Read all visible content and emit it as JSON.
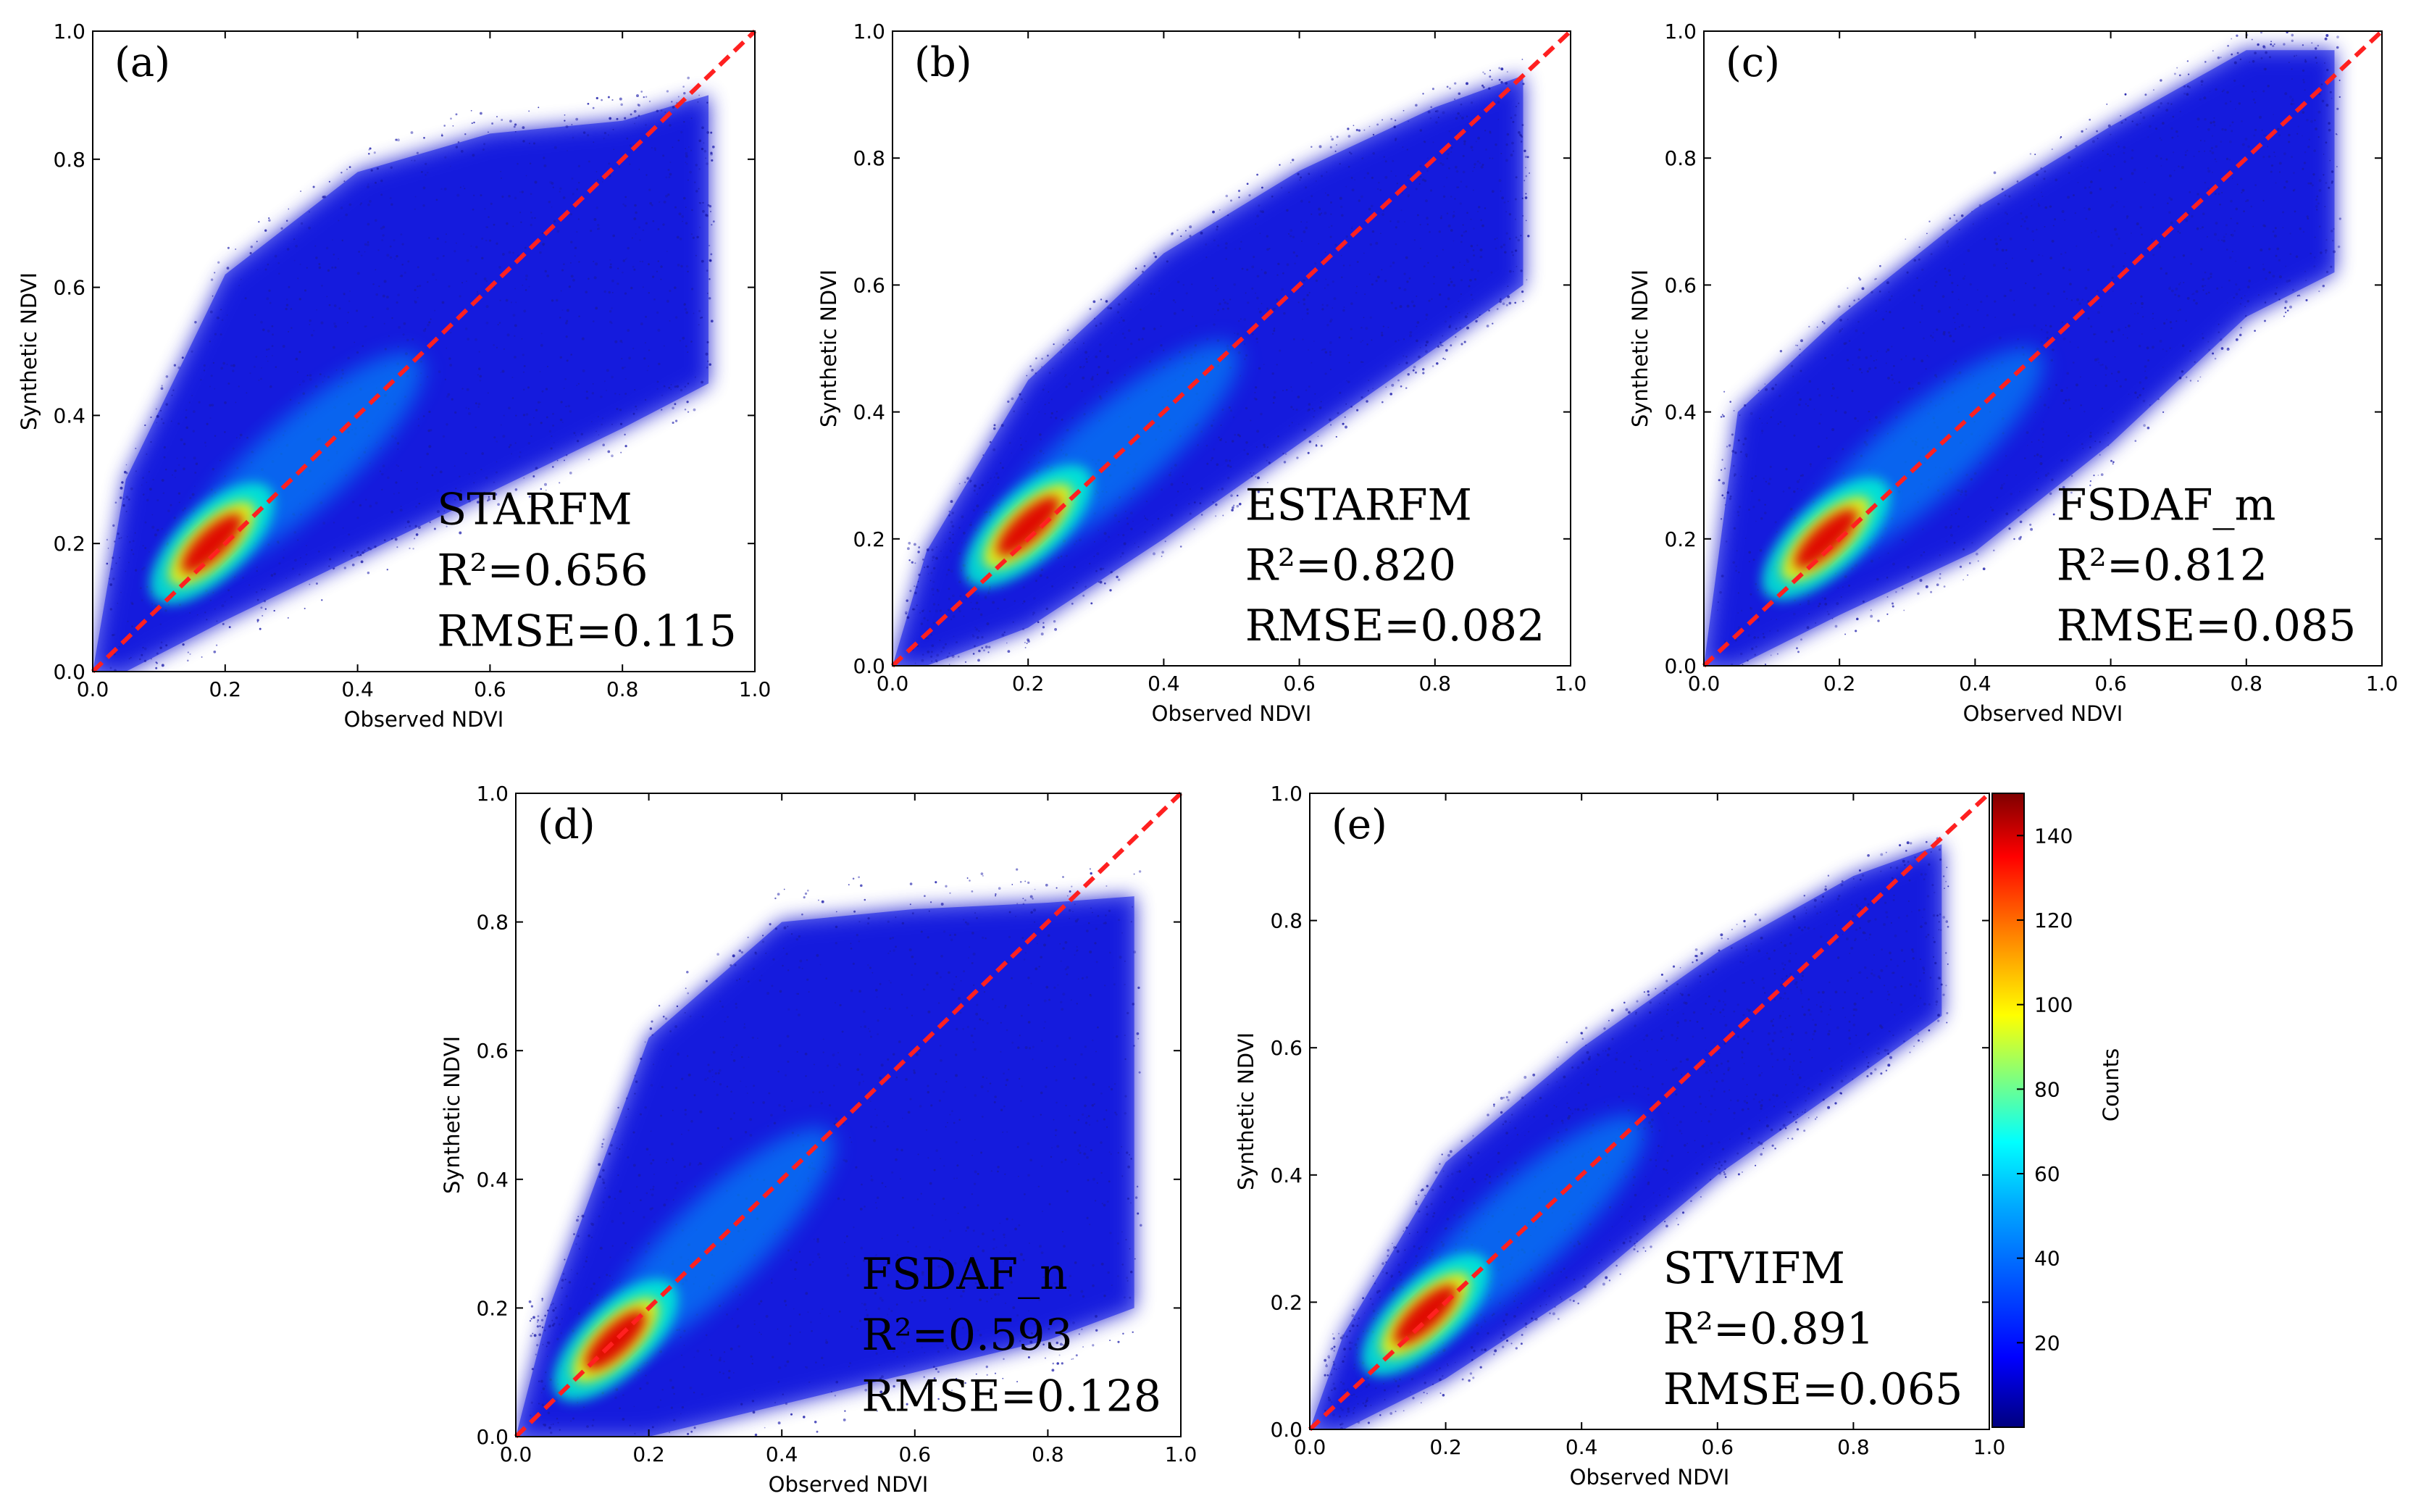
{
  "chart_data": [
    {
      "panel": "(a)",
      "type": "scatter",
      "method": "STARFM",
      "r2_label": "R²=0.656",
      "rmse_label": "RMSE=0.115",
      "xlabel": "Observed NDVI",
      "ylabel": "Synthetic NDVI",
      "xlim": [
        0,
        1
      ],
      "ylim": [
        0,
        1
      ],
      "ticks": [
        "0.0",
        "0.2",
        "0.4",
        "0.6",
        "0.8",
        "1.0"
      ],
      "reference_line": "1:1",
      "density_peak": [
        0.18,
        0.2
      ],
      "scatter_profile": [
        {
          "x": 0.05,
          "ymin": 0.0,
          "ymax": 0.3
        },
        {
          "x": 0.2,
          "ymin": 0.08,
          "ymax": 0.62
        },
        {
          "x": 0.4,
          "ymin": 0.18,
          "ymax": 0.78
        },
        {
          "x": 0.6,
          "ymin": 0.28,
          "ymax": 0.84
        },
        {
          "x": 0.8,
          "ymin": 0.38,
          "ymax": 0.86
        },
        {
          "x": 0.93,
          "ymin": 0.45,
          "ymax": 0.9
        }
      ]
    },
    {
      "panel": "(b)",
      "type": "scatter",
      "method": "ESTARFM",
      "r2_label": "R²=0.820",
      "rmse_label": "RMSE=0.082",
      "xlabel": "Observed NDVI",
      "ylabel": "Synthetic NDVI",
      "xlim": [
        0,
        1
      ],
      "ylim": [
        0,
        1
      ],
      "ticks": [
        "0.0",
        "0.2",
        "0.4",
        "0.6",
        "0.8",
        "1.0"
      ],
      "reference_line": "1:1",
      "density_peak": [
        0.2,
        0.22
      ],
      "scatter_profile": [
        {
          "x": 0.05,
          "ymin": 0.0,
          "ymax": 0.18
        },
        {
          "x": 0.2,
          "ymin": 0.06,
          "ymax": 0.45
        },
        {
          "x": 0.4,
          "ymin": 0.2,
          "ymax": 0.65
        },
        {
          "x": 0.6,
          "ymin": 0.35,
          "ymax": 0.78
        },
        {
          "x": 0.8,
          "ymin": 0.5,
          "ymax": 0.88
        },
        {
          "x": 0.93,
          "ymin": 0.6,
          "ymax": 0.93
        }
      ]
    },
    {
      "panel": "(c)",
      "type": "scatter",
      "method": "FSDAF_m",
      "r2_label": "R²=0.812",
      "rmse_label": "RMSE=0.085",
      "xlabel": "Observed NDVI",
      "ylabel": "Synthetic NDVI",
      "xlim": [
        0,
        1
      ],
      "ylim": [
        0,
        1
      ],
      "ticks": [
        "0.0",
        "0.2",
        "0.4",
        "0.6",
        "0.8",
        "1.0"
      ],
      "reference_line": "1:1",
      "density_peak": [
        0.18,
        0.2
      ],
      "scatter_profile": [
        {
          "x": 0.05,
          "ymin": 0.0,
          "ymax": 0.4
        },
        {
          "x": 0.2,
          "ymin": 0.08,
          "ymax": 0.55
        },
        {
          "x": 0.4,
          "ymin": 0.18,
          "ymax": 0.72
        },
        {
          "x": 0.6,
          "ymin": 0.35,
          "ymax": 0.85
        },
        {
          "x": 0.8,
          "ymin": 0.55,
          "ymax": 0.97
        },
        {
          "x": 0.93,
          "ymin": 0.62,
          "ymax": 0.97
        }
      ]
    },
    {
      "panel": "(d)",
      "type": "scatter",
      "method": "FSDAF_n",
      "r2_label": "R²=0.593",
      "rmse_label": "RMSE=0.128",
      "xlabel": "Observed NDVI",
      "ylabel": "Synthetic NDVI",
      "xlim": [
        0,
        1
      ],
      "ylim": [
        0,
        1
      ],
      "ticks": [
        "0.0",
        "0.2",
        "0.4",
        "0.6",
        "0.8",
        "1.0"
      ],
      "reference_line": "1:1",
      "density_peak": [
        0.15,
        0.15
      ],
      "scatter_profile": [
        {
          "x": 0.05,
          "ymin": 0.0,
          "ymax": 0.2
        },
        {
          "x": 0.2,
          "ymin": 0.0,
          "ymax": 0.62
        },
        {
          "x": 0.4,
          "ymin": 0.05,
          "ymax": 0.8
        },
        {
          "x": 0.6,
          "ymin": 0.1,
          "ymax": 0.82
        },
        {
          "x": 0.8,
          "ymin": 0.15,
          "ymax": 0.83
        },
        {
          "x": 0.93,
          "ymin": 0.2,
          "ymax": 0.84
        }
      ]
    },
    {
      "panel": "(e)",
      "type": "scatter",
      "method": "STVIFM",
      "r2_label": "R²=0.891",
      "rmse_label": "RMSE=0.065",
      "xlabel": "Observed NDVI",
      "ylabel": "Synthetic NDVI",
      "xlim": [
        0,
        1
      ],
      "ylim": [
        0,
        1
      ],
      "ticks": [
        "0.0",
        "0.2",
        "0.4",
        "0.6",
        "0.8",
        "1.0"
      ],
      "reference_line": "1:1",
      "density_peak": [
        0.17,
        0.18
      ],
      "scatter_profile": [
        {
          "x": 0.05,
          "ymin": 0.0,
          "ymax": 0.15
        },
        {
          "x": 0.2,
          "ymin": 0.08,
          "ymax": 0.42
        },
        {
          "x": 0.4,
          "ymin": 0.22,
          "ymax": 0.6
        },
        {
          "x": 0.6,
          "ymin": 0.4,
          "ymax": 0.75
        },
        {
          "x": 0.8,
          "ymin": 0.55,
          "ymax": 0.87
        },
        {
          "x": 0.93,
          "ymin": 0.65,
          "ymax": 0.92
        }
      ]
    }
  ],
  "colorbar": {
    "label": "Counts",
    "ticks": [
      "20",
      "40",
      "60",
      "80",
      "100",
      "120",
      "140"
    ],
    "tick_values": [
      20,
      40,
      60,
      80,
      100,
      120,
      140
    ],
    "range": [
      0,
      150
    ],
    "colormap": [
      "#00007f",
      "#0000ff",
      "#007fff",
      "#00ffff",
      "#7fff7f",
      "#ffff00",
      "#ff7f00",
      "#ff0000",
      "#7f0000"
    ]
  },
  "colors": {
    "reference_line": "#ff2020",
    "axes": "#000000"
  }
}
